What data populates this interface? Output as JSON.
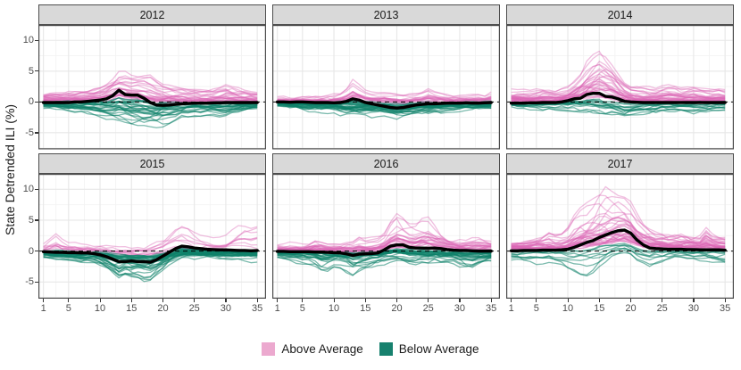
{
  "chart_data": {
    "type": "line",
    "title": "",
    "xlabel": "",
    "ylabel": "State Detrended ILI (%)",
    "x_ticks": [
      1,
      5,
      10,
      15,
      20,
      25,
      30,
      35
    ],
    "y_ticks": [
      -5,
      0,
      5,
      10
    ],
    "x_minor": [
      3,
      7.5,
      12.5,
      17.5,
      22.5,
      27.5,
      32.5
    ],
    "y_minor": [
      -7.5,
      -2.5,
      2.5,
      7.5
    ],
    "xlim": [
      0.2,
      36.4
    ],
    "ylim": [
      -7.7,
      12.5
    ],
    "grid": "major-and-minor-on-white",
    "zero_line": {
      "value": 0,
      "style": "dashed",
      "color": "#000000"
    },
    "colors": {
      "above": "#DC66B4",
      "below": "#0E8169",
      "mean_line": "#000000",
      "strip_bg": "#d9d9d9",
      "panel_border": "#4d4d4d",
      "grid_major": "#e7e7e7",
      "grid_minor": "#f3f3f3"
    },
    "legend": {
      "position": "bottom",
      "entries": [
        {
          "label": "Above Average",
          "color": "#ECA9CF"
        },
        {
          "label": "Below Average",
          "color": "#17816E"
        }
      ]
    },
    "weeks": [
      1,
      2,
      3,
      4,
      5,
      6,
      7,
      8,
      9,
      10,
      11,
      12,
      13,
      14,
      15,
      16,
      17,
      18,
      19,
      20,
      21,
      22,
      23,
      24,
      25,
      26,
      27,
      28,
      29,
      30,
      31,
      32,
      33,
      34,
      35
    ],
    "panels": [
      {
        "title": "2012",
        "seed": 2012,
        "mean": [
          -0.1,
          -0.1,
          -0.1,
          -0.1,
          -0.1,
          0,
          0,
          0.1,
          0.2,
          0.3,
          0.5,
          1.0,
          1.9,
          1.2,
          1.1,
          1.1,
          0.6,
          -0.1,
          -0.5,
          -0.55,
          -0.5,
          -0.4,
          -0.3,
          -0.25,
          -0.2,
          -0.2,
          -0.2,
          -0.15,
          -0.15,
          -0.1,
          -0.1,
          -0.1,
          -0.1,
          -0.1,
          -0.1
        ],
        "above": {
          "count": 26,
          "envelope": [
            1.5,
            1.5,
            1.6,
            1.6,
            1.7,
            1.8,
            1.9,
            2.0,
            2.2,
            2.6,
            3.2,
            4.0,
            4.8,
            5.2,
            4.6,
            4.2,
            4.4,
            4.6,
            4.0,
            3.4,
            3.0,
            2.8,
            2.6,
            2.4,
            2.4,
            2.2,
            2.2,
            2.4,
            2.8,
            3.2,
            3.0,
            2.6,
            2.4,
            2.2,
            2.0
          ]
        },
        "below": {
          "count": 26,
          "envelope": [
            1.0,
            1.0,
            1.1,
            1.2,
            1.3,
            1.4,
            1.5,
            1.6,
            1.8,
            2.2,
            2.6,
            3.0,
            3.4,
            3.2,
            3.4,
            3.6,
            3.6,
            3.4,
            3.4,
            3.2,
            3.0,
            2.6,
            2.2,
            2.0,
            1.8,
            1.8,
            1.8,
            1.8,
            2.0,
            2.0,
            1.8,
            1.6,
            1.6,
            1.4,
            1.2
          ]
        }
      },
      {
        "title": "2013",
        "seed": 2013,
        "mean": [
          0,
          0,
          -0.05,
          0,
          0,
          -0.05,
          -0.1,
          -0.1,
          -0.1,
          -0.15,
          -0.1,
          0.1,
          0.5,
          0.3,
          -0.1,
          -0.3,
          -0.5,
          -0.7,
          -0.9,
          -1.0,
          -0.9,
          -0.7,
          -0.5,
          -0.4,
          -0.3,
          -0.3,
          -0.25,
          -0.2,
          -0.2,
          -0.2,
          -0.15,
          -0.2,
          -0.2,
          -0.15,
          -0.1
        ],
        "above": {
          "count": 18,
          "envelope": [
            1.2,
            1.2,
            1.2,
            1.3,
            1.4,
            1.4,
            1.5,
            1.6,
            1.6,
            1.8,
            2.2,
            3.0,
            4.5,
            3.6,
            2.6,
            2.2,
            2.4,
            2.6,
            2.4,
            2.2,
            2.0,
            2.0,
            2.2,
            2.6,
            3.4,
            2.8,
            2.2,
            1.8,
            1.6,
            1.6,
            1.8,
            2.0,
            1.8,
            1.6,
            2.2
          ]
        },
        "below": {
          "count": 32,
          "envelope": [
            1.0,
            1.1,
            1.2,
            1.4,
            1.6,
            1.6,
            1.6,
            1.6,
            1.8,
            2.0,
            2.4,
            2.8,
            3.0,
            2.8,
            2.6,
            2.6,
            2.4,
            2.6,
            2.8,
            3.0,
            2.8,
            2.6,
            2.4,
            2.4,
            2.6,
            2.4,
            2.2,
            2.0,
            1.8,
            1.6,
            1.4,
            1.4,
            1.4,
            1.4,
            1.4
          ]
        }
      },
      {
        "title": "2014",
        "seed": 2014,
        "mean": [
          -0.2,
          -0.2,
          -0.2,
          -0.15,
          -0.15,
          -0.1,
          -0.1,
          -0.1,
          0,
          0.2,
          0.5,
          0.6,
          1.2,
          1.4,
          1.4,
          0.9,
          0.8,
          0.5,
          0.1,
          0,
          -0.05,
          -0.1,
          -0.1,
          -0.1,
          -0.1,
          -0.1,
          -0.1,
          -0.1,
          -0.1,
          -0.1,
          -0.1,
          -0.1,
          -0.1,
          -0.1,
          -0.1
        ],
        "above": {
          "count": 34,
          "envelope": [
            2.2,
            2.4,
            2.2,
            2.0,
            2.2,
            2.4,
            2.2,
            2.0,
            2.2,
            2.6,
            3.6,
            5.0,
            6.5,
            7.5,
            8.5,
            8.0,
            7.0,
            5.5,
            4.0,
            3.0,
            2.6,
            2.4,
            2.2,
            2.2,
            2.4,
            2.6,
            2.4,
            2.2,
            2.2,
            2.4,
            2.2,
            2.0,
            2.0,
            2.2,
            2.0
          ]
        },
        "below": {
          "count": 14,
          "envelope": [
            0.8,
            0.9,
            1.0,
            1.0,
            1.0,
            1.1,
            1.1,
            1.2,
            1.2,
            1.4,
            1.6,
            1.8,
            2.0,
            2.2,
            2.4,
            2.4,
            2.2,
            2.2,
            2.4,
            2.2,
            2.0,
            2.0,
            1.8,
            1.8,
            1.6,
            1.6,
            1.6,
            1.6,
            1.6,
            1.6,
            1.4,
            1.4,
            1.2,
            1.2,
            1.2
          ]
        }
      },
      {
        "title": "2015",
        "seed": 2015,
        "mean": [
          -0.1,
          -0.15,
          -0.2,
          -0.2,
          -0.25,
          -0.25,
          -0.3,
          -0.3,
          -0.4,
          -0.6,
          -0.9,
          -1.3,
          -1.7,
          -1.7,
          -1.6,
          -1.7,
          -1.7,
          -1.8,
          -1.4,
          -0.8,
          -0.2,
          0.4,
          0.8,
          0.7,
          0.5,
          0.4,
          0.3,
          0.25,
          0.2,
          0.2,
          0.15,
          0.1,
          0.1,
          0.05,
          0.1
        ],
        "above": {
          "count": 10,
          "envelope": [
            1.0,
            1.8,
            2.4,
            1.6,
            1.2,
            1.2,
            1.0,
            1.0,
            1.0,
            1.0,
            1.0,
            1.0,
            1.0,
            1.0,
            1.0,
            1.0,
            1.0,
            1.2,
            1.6,
            2.0,
            2.6,
            3.2,
            3.6,
            3.0,
            2.4,
            2.0,
            1.8,
            1.6,
            1.6,
            1.8,
            2.6,
            3.4,
            3.6,
            3.4,
            3.6
          ]
        },
        "below": {
          "count": 38,
          "envelope": [
            1.2,
            1.3,
            1.4,
            1.6,
            1.8,
            2.0,
            2.2,
            2.0,
            2.0,
            2.4,
            3.0,
            3.8,
            4.6,
            4.0,
            4.2,
            4.0,
            4.4,
            4.2,
            3.6,
            3.0,
            2.4,
            2.0,
            1.8,
            1.6,
            1.6,
            1.6,
            1.6,
            1.6,
            1.6,
            1.6,
            1.4,
            1.4,
            1.4,
            1.4,
            1.4
          ]
        }
      },
      {
        "title": "2016",
        "seed": 2016,
        "mean": [
          -0.05,
          -0.05,
          -0.1,
          -0.1,
          -0.1,
          -0.1,
          -0.15,
          -0.15,
          -0.2,
          -0.25,
          -0.3,
          -0.45,
          -0.7,
          -0.5,
          -0.45,
          -0.4,
          -0.3,
          0.2,
          0.8,
          1.0,
          1.0,
          0.6,
          0.5,
          0.5,
          0.45,
          0.5,
          0.4,
          0.25,
          0.15,
          0.1,
          0.1,
          0.05,
          0,
          0,
          0
        ],
        "above": {
          "count": 26,
          "envelope": [
            1.4,
            1.4,
            1.5,
            1.6,
            1.6,
            1.8,
            2.6,
            2.2,
            1.8,
            1.8,
            2.0,
            2.2,
            2.4,
            2.8,
            2.4,
            2.4,
            2.8,
            3.6,
            5.2,
            6.0,
            5.0,
            4.4,
            4.6,
            5.4,
            5.6,
            4.6,
            3.8,
            3.0,
            2.6,
            2.2,
            2.0,
            2.2,
            2.4,
            2.2,
            2.0
          ]
        },
        "below": {
          "count": 26,
          "envelope": [
            1.2,
            1.4,
            1.6,
            1.8,
            2.0,
            2.2,
            2.4,
            3.4,
            3.6,
            3.0,
            2.8,
            3.2,
            3.8,
            3.2,
            2.8,
            2.4,
            2.2,
            2.2,
            2.4,
            2.2,
            2.4,
            2.6,
            2.4,
            2.2,
            2.4,
            2.2,
            2.4,
            2.2,
            2.0,
            2.4,
            2.8,
            3.0,
            2.4,
            2.0,
            1.8
          ]
        }
      },
      {
        "title": "2017",
        "seed": 2017,
        "mean": [
          0.05,
          0.05,
          0.1,
          0.1,
          0.1,
          0.15,
          0.15,
          0.15,
          0.2,
          0.3,
          0.6,
          1.0,
          1.4,
          1.7,
          2.2,
          2.6,
          3.0,
          3.3,
          3.4,
          2.9,
          1.8,
          1.0,
          0.5,
          0.4,
          0.35,
          0.3,
          0.3,
          0.3,
          0.25,
          0.25,
          0.2,
          0.2,
          0.2,
          0.2,
          0.15
        ],
        "above": {
          "count": 38,
          "envelope": [
            1.6,
            1.6,
            1.8,
            2.0,
            2.2,
            2.4,
            2.8,
            2.4,
            2.4,
            3.0,
            4.5,
            5.5,
            6.0,
            6.5,
            7.5,
            8.0,
            8.0,
            7.8,
            7.5,
            6.5,
            5.0,
            4.0,
            3.4,
            2.8,
            2.6,
            2.4,
            2.4,
            2.6,
            2.4,
            2.2,
            2.2,
            3.4,
            2.4,
            2.2,
            2.0
          ]
        },
        "below": {
          "count": 9,
          "envelope": [
            1.4,
            1.6,
            1.8,
            2.0,
            2.2,
            2.0,
            1.8,
            2.2,
            2.6,
            3.2,
            3.8,
            4.2,
            4.4,
            4.0,
            3.4,
            2.8,
            2.2,
            1.8,
            1.6,
            2.0,
            2.6,
            3.0,
            3.2,
            2.8,
            2.4,
            2.0,
            1.8,
            1.8,
            2.0,
            2.2,
            2.4,
            2.8,
            3.0,
            3.2,
            3.4
          ]
        }
      }
    ]
  }
}
